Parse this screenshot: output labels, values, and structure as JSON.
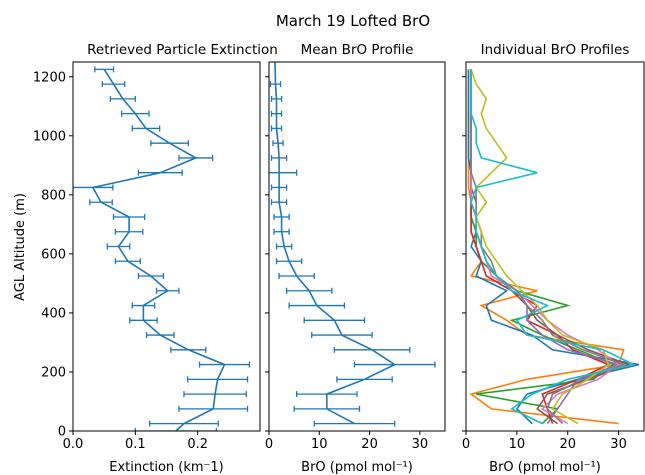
{
  "suptitle": "March 19 Lofted BrO",
  "ylabel": "AGL Altitude (m)",
  "y_ticks": [
    0,
    200,
    400,
    600,
    800,
    1000,
    1200
  ],
  "ylim": [
    0,
    1250
  ],
  "chart_data": [
    {
      "type": "line",
      "title": "Retrieved Particle Extinction",
      "xlabel": "Extinction (km$^-$1)",
      "xlabel_display": "Extinction (km⁻1)",
      "xlim": [
        0.0,
        0.3
      ],
      "x_ticks": [
        0.0,
        0.1,
        0.2
      ],
      "x_tick_labels": [
        "0.0",
        "0.1",
        "0.2"
      ],
      "color": "#1f77b4",
      "error_bars": true,
      "points": [
        {
          "alt": 0,
          "x": 0.165,
          "err": 0.065
        },
        {
          "alt": 25,
          "x": 0.178,
          "err": 0.055
        },
        {
          "alt": 75,
          "x": 0.225,
          "err": 0.055
        },
        {
          "alt": 125,
          "x": 0.228,
          "err": 0.05
        },
        {
          "alt": 175,
          "x": 0.232,
          "err": 0.048
        },
        {
          "alt": 225,
          "x": 0.243,
          "err": 0.04
        },
        {
          "alt": 275,
          "x": 0.185,
          "err": 0.028
        },
        {
          "alt": 325,
          "x": 0.14,
          "err": 0.022
        },
        {
          "alt": 375,
          "x": 0.113,
          "err": 0.022
        },
        {
          "alt": 425,
          "x": 0.113,
          "err": 0.018
        },
        {
          "alt": 475,
          "x": 0.152,
          "err": 0.018
        },
        {
          "alt": 525,
          "x": 0.125,
          "err": 0.02
        },
        {
          "alt": 575,
          "x": 0.088,
          "err": 0.02
        },
        {
          "alt": 625,
          "x": 0.073,
          "err": 0.018
        },
        {
          "alt": 675,
          "x": 0.09,
          "err": 0.022
        },
        {
          "alt": 725,
          "x": 0.09,
          "err": 0.025
        },
        {
          "alt": 775,
          "x": 0.045,
          "err": 0.018
        },
        {
          "alt": 825,
          "x": 0.032,
          "err": 0.032
        },
        {
          "alt": 875,
          "x": 0.14,
          "err": 0.035
        },
        {
          "alt": 925,
          "x": 0.197,
          "err": 0.027
        },
        {
          "alt": 975,
          "x": 0.155,
          "err": 0.03
        },
        {
          "alt": 1025,
          "x": 0.117,
          "err": 0.022
        },
        {
          "alt": 1075,
          "x": 0.1,
          "err": 0.022
        },
        {
          "alt": 1125,
          "x": 0.08,
          "err": 0.02
        },
        {
          "alt": 1175,
          "x": 0.065,
          "err": 0.018
        },
        {
          "alt": 1225,
          "x": 0.05,
          "err": 0.015
        }
      ]
    },
    {
      "type": "line",
      "title": "Mean BrO Profile",
      "xlabel": "BrO (pmol mol$^{-1}$)",
      "xlabel_display": "BrO (pmol mol⁻¹)",
      "xlim": [
        0,
        35
      ],
      "x_ticks": [
        0,
        10,
        20,
        30
      ],
      "x_tick_labels": [
        "0",
        "10",
        "20",
        "30"
      ],
      "color": "#1f77b4",
      "error_bars": true,
      "points": [
        {
          "alt": 25,
          "x": 17,
          "err": 8
        },
        {
          "alt": 75,
          "x": 11.5,
          "err": 6.5
        },
        {
          "alt": 125,
          "x": 11.5,
          "err": 6
        },
        {
          "alt": 175,
          "x": 19,
          "err": 5.5
        },
        {
          "alt": 225,
          "x": 25,
          "err": 8
        },
        {
          "alt": 275,
          "x": 20.5,
          "err": 7.5
        },
        {
          "alt": 325,
          "x": 14.5,
          "err": 6
        },
        {
          "alt": 375,
          "x": 13,
          "err": 6
        },
        {
          "alt": 425,
          "x": 9.5,
          "err": 5.5
        },
        {
          "alt": 475,
          "x": 8,
          "err": 4.5
        },
        {
          "alt": 525,
          "x": 5.5,
          "err": 3.5
        },
        {
          "alt": 575,
          "x": 4,
          "err": 2.5
        },
        {
          "alt": 625,
          "x": 3,
          "err": 1.5
        },
        {
          "alt": 675,
          "x": 2.5,
          "err": 1.5
        },
        {
          "alt": 725,
          "x": 2.5,
          "err": 1.5
        },
        {
          "alt": 775,
          "x": 2,
          "err": 1.5
        },
        {
          "alt": 825,
          "x": 2,
          "err": 1.5
        },
        {
          "alt": 875,
          "x": 2,
          "err": 3.5
        },
        {
          "alt": 925,
          "x": 2,
          "err": 1.5
        },
        {
          "alt": 975,
          "x": 1.8,
          "err": 1
        },
        {
          "alt": 1025,
          "x": 1.5,
          "err": 1
        },
        {
          "alt": 1075,
          "x": 1.5,
          "err": 1
        },
        {
          "alt": 1125,
          "x": 1.5,
          "err": 1
        },
        {
          "alt": 1175,
          "x": 1.3,
          "err": 1
        },
        {
          "alt": 1250,
          "x": 1.2,
          "err": 0
        }
      ]
    },
    {
      "type": "line",
      "title": "Individual BrO Profiles",
      "xlabel": "BrO (pmol mol$^{-1}$)",
      "xlabel_display": "BrO (pmol mol⁻¹)",
      "xlim": [
        0,
        35
      ],
      "x_ticks": [
        0,
        10,
        20,
        30
      ],
      "x_tick_labels": [
        "0",
        "10",
        "20",
        "30"
      ],
      "error_bars": false,
      "altitudes": [
        25,
        75,
        125,
        175,
        225,
        275,
        325,
        375,
        425,
        475,
        525,
        575,
        625,
        675,
        725,
        775,
        825,
        875,
        925,
        975,
        1025,
        1075,
        1125,
        1175,
        1225
      ],
      "series": [
        {
          "color": "#ff7f0e",
          "values": [
            30,
            5,
            1,
            12,
            30,
            31,
            12,
            8,
            3,
            14,
            1,
            3,
            2,
            1,
            1,
            1,
            0.5,
            0.5,
            0.5,
            0.5,
            0.5,
            0.5,
            0.5,
            0.5,
            0.5
          ]
        },
        {
          "color": "#1f77b4",
          "values": [
            13,
            10,
            12,
            22,
            34,
            17,
            13,
            5,
            4,
            8,
            2,
            3,
            1,
            2,
            1,
            1,
            1,
            1,
            0.5,
            0.5,
            0.5,
            0.5,
            0.5,
            0.5,
            0.5
          ]
        },
        {
          "color": "#2ca02c",
          "values": [
            15,
            18,
            2,
            25,
            29,
            22,
            15,
            9,
            20,
            10,
            6,
            3,
            2,
            2,
            1,
            1,
            1,
            1,
            1,
            1,
            1,
            1,
            1,
            1,
            1
          ]
        },
        {
          "color": "#d62728",
          "values": [
            17,
            16,
            15,
            22,
            28,
            21,
            18,
            12,
            14,
            9,
            4,
            3,
            2,
            1,
            1,
            1,
            1,
            1,
            1,
            1,
            1,
            1,
            1,
            1,
            1
          ]
        },
        {
          "color": "#9467bd",
          "values": [
            16,
            18,
            20,
            22,
            30,
            20,
            15,
            12,
            12,
            10,
            5,
            4,
            3,
            2,
            2,
            1,
            1,
            1,
            1,
            1,
            1,
            1,
            1,
            1,
            1
          ]
        },
        {
          "color": "#8c564b",
          "values": [
            18,
            14,
            16,
            24,
            32,
            24,
            18,
            14,
            12,
            9,
            6,
            4,
            3,
            2,
            2,
            2,
            1,
            1,
            1,
            1,
            1,
            1,
            1,
            1,
            1
          ]
        },
        {
          "color": "#e377c2",
          "values": [
            20,
            15,
            18,
            26,
            30,
            26,
            20,
            16,
            13,
            10,
            5,
            4,
            3,
            2,
            2,
            1,
            1,
            1,
            1,
            1,
            1,
            1,
            1,
            1,
            1
          ]
        },
        {
          "color": "#7f7f7f",
          "values": [
            19,
            16,
            17,
            23,
            31,
            23,
            17,
            15,
            12,
            10,
            6,
            5,
            3,
            3,
            2,
            2,
            2,
            1,
            1,
            1,
            1,
            1,
            1,
            1,
            1
          ]
        },
        {
          "color": "#bcbd22",
          "values": [
            22,
            17,
            19,
            24,
            28,
            27,
            19,
            16,
            14,
            11,
            8,
            6,
            4,
            3,
            2,
            4,
            2,
            5,
            8,
            6,
            4,
            3,
            4,
            2,
            1
          ]
        },
        {
          "color": "#17becf",
          "values": [
            15,
            9,
            13,
            20,
            33,
            27,
            12,
            10,
            16,
            9,
            6,
            4,
            3,
            2,
            2,
            1,
            2,
            14,
            3,
            2,
            2,
            1,
            1,
            1,
            1
          ]
        }
      ]
    }
  ]
}
